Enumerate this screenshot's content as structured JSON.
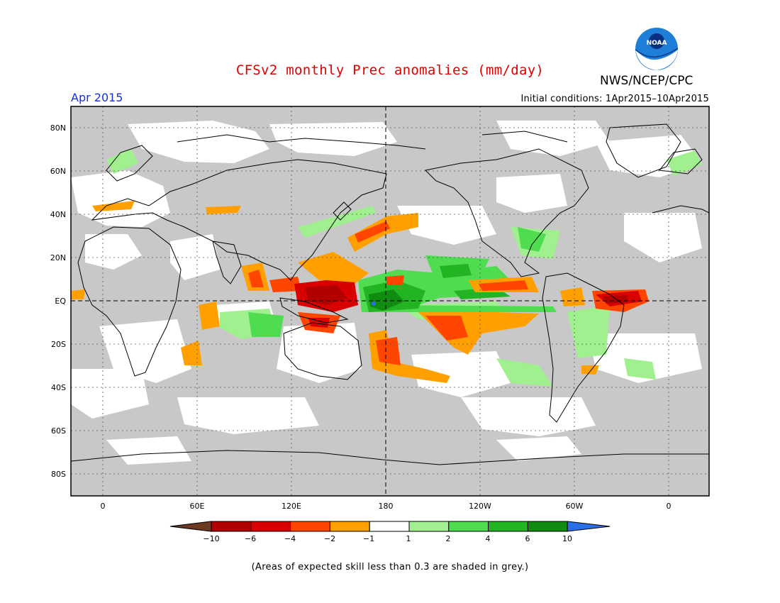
{
  "title": "CFSv2 monthly Prec anomalies (mm/day)",
  "agency": "NWS/NCEP/CPC",
  "logo_text": "NOAA",
  "forecast_month": "Apr 2015",
  "initial_conditions": "Initial conditions: 1Apr2015–10Apr2015",
  "footnote": "(Areas of expected skill less than 0.3 are shaded in grey.)",
  "lat_labels": [
    "80N",
    "60N",
    "40N",
    "20N",
    "EQ",
    "20S",
    "40S",
    "60S",
    "80S"
  ],
  "lon_labels": [
    "0",
    "60E",
    "120E",
    "180",
    "120W",
    "60W",
    "0"
  ],
  "colorbar": {
    "labels": [
      "−10",
      "−6",
      "−4",
      "−2",
      "−1",
      "1",
      "2",
      "4",
      "6",
      "10"
    ],
    "colors": [
      "#6b3a20",
      "#b20000",
      "#d80000",
      "#ff4500",
      "#ffa000",
      "#ffffff",
      "#a0f090",
      "#50dc50",
      "#22b422",
      "#108c10",
      "#2a6ee8"
    ]
  },
  "colors": {
    "low_skill_grey": "#c8c8c8",
    "title_red": "#e00000",
    "month_blue": "#1530e8"
  }
}
